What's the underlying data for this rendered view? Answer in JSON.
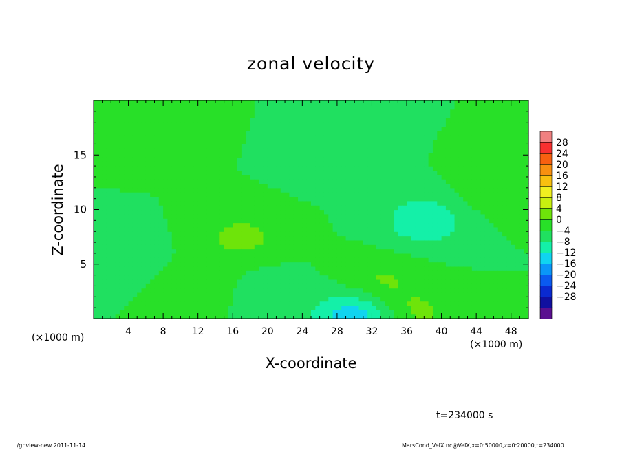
{
  "chart_data": {
    "type": "heatmap",
    "title": "zonal velocity",
    "xlabel": "X-coordinate",
    "ylabel": "Z-coordinate",
    "x_unit_label": "(×1000 m)",
    "x_unit_label_right": "(×1000 m)",
    "xlim": [
      0,
      50
    ],
    "ylim": [
      0,
      20
    ],
    "x_ticks": [
      "4",
      "8",
      "12",
      "16",
      "20",
      "24",
      "28",
      "32",
      "36",
      "40",
      "44",
      "48"
    ],
    "y_ticks": [
      "5",
      "10",
      "15"
    ],
    "colorbar": {
      "labels": [
        "28",
        "24",
        "20",
        "16",
        "12",
        "8",
        "4",
        "0",
        "−4",
        "−8",
        "−12",
        "−16",
        "−20",
        "−24",
        "−28"
      ],
      "levels": [
        -32,
        -28,
        -24,
        -20,
        -16,
        -12,
        -8,
        -4,
        0,
        4,
        8,
        12,
        16,
        20,
        24,
        28,
        32
      ],
      "colors": [
        "#5a1090",
        "#1010a0",
        "#0a2ad0",
        "#0a5af0",
        "#0a96f8",
        "#10d4f0",
        "#14f0a8",
        "#20e060",
        "#28e028",
        "#6ee40a",
        "#c8f010",
        "#f0f020",
        "#f8c010",
        "#f89010",
        "#f86010",
        "#f83030",
        "#f08080"
      ]
    },
    "field_description": "velocity mostly between -4 and 4; positive patches near x=17,z=7.5 and x=30-35,z=3-5; negative patches near x=38,z=9 and x=30,z=0",
    "features": [
      {
        "x": 17,
        "z": 7.5,
        "value": 5.5
      },
      {
        "x": 33,
        "z": 3.5,
        "value": 4.5
      },
      {
        "x": 37,
        "z": 0.5,
        "value": 5
      },
      {
        "x": 47,
        "z": 12,
        "value": 4
      },
      {
        "x": 13,
        "z": 2.5,
        "value": 3
      },
      {
        "x": 38,
        "z": 9,
        "value": -8
      },
      {
        "x": 30,
        "z": 0.2,
        "value": -11
      },
      {
        "x": 20,
        "z": 2,
        "value": -4
      },
      {
        "x": 2,
        "z": 6,
        "value": -4
      },
      {
        "x": 7,
        "z": 17,
        "value": 2
      },
      {
        "x": 28,
        "z": 15,
        "value": -3.5
      }
    ]
  },
  "annotation_time": "t=234000 s",
  "footer_left": "./gpview-new  2011-11-14",
  "footer_right": "MarsCond_VelX.nc@VelX,x=0:50000,z=0:20000,t=234000"
}
